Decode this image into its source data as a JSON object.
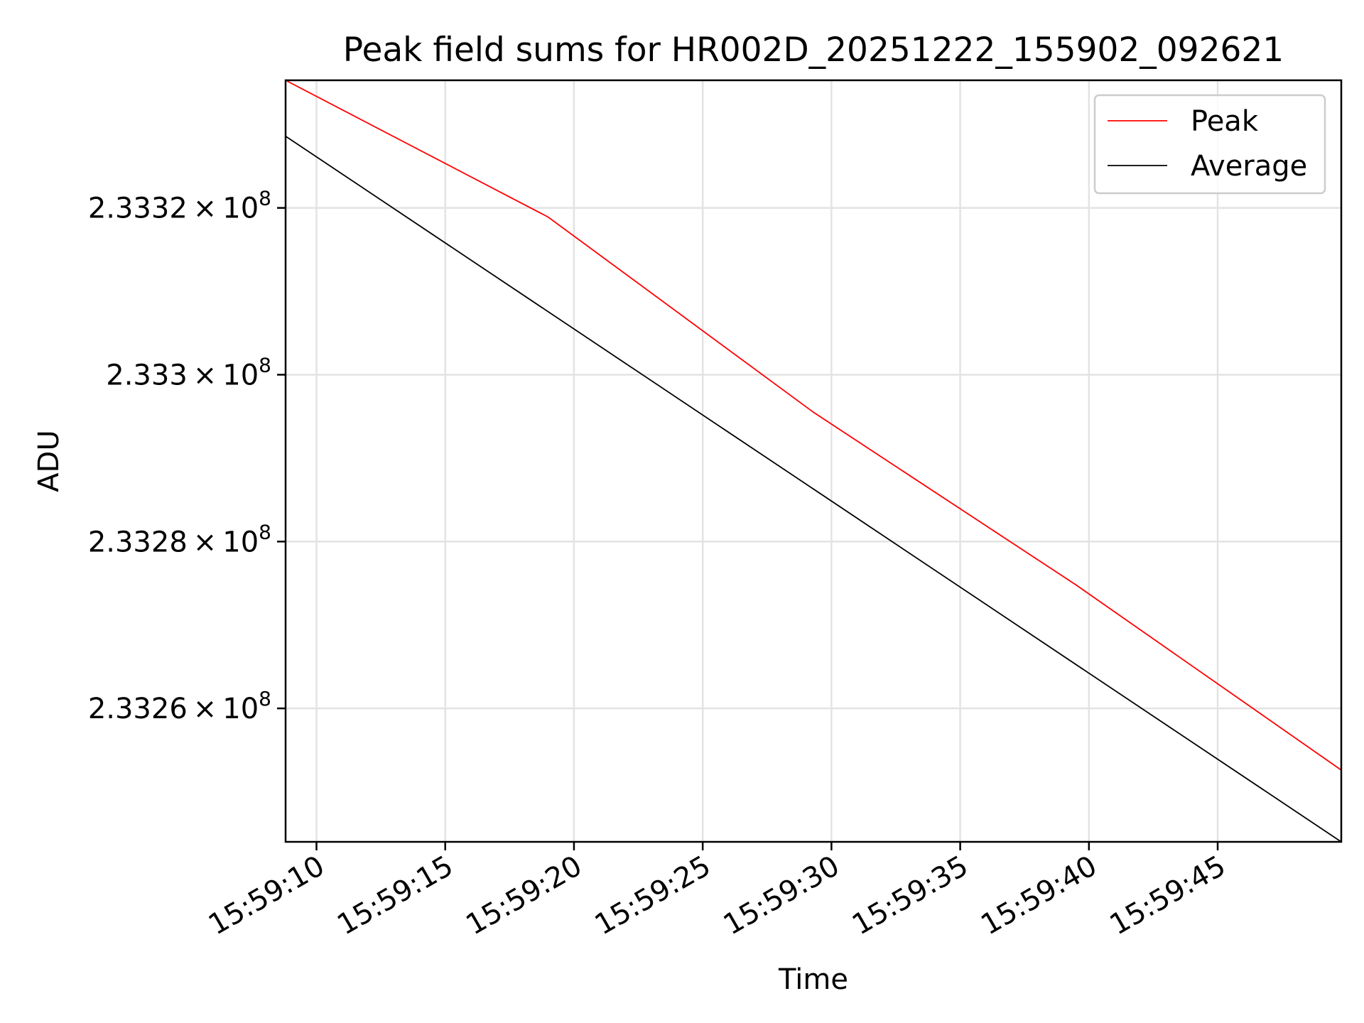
{
  "chart_data": {
    "type": "line",
    "title": "Peak field sums for HR002D_20251222_155902_092621",
    "xlabel": "Time",
    "ylabel": "ADU",
    "x_ticks": [
      "15:59:10",
      "15:59:15",
      "15:59:20",
      "15:59:25",
      "15:59:30",
      "15:59:35",
      "15:59:40",
      "15:59:45"
    ],
    "y_ticks": [
      {
        "value": 233260000,
        "mantissa": "2.3326",
        "exponent": "8"
      },
      {
        "value": 233280000,
        "mantissa": "2.3328",
        "exponent": "8"
      },
      {
        "value": 233300000,
        "mantissa": "2.333",
        "exponent": "8"
      },
      {
        "value": 233320000,
        "mantissa": "2.3332",
        "exponent": "8"
      }
    ],
    "xlim": [
      "15:59:08.8",
      "15:59:49.8"
    ],
    "ylim": [
      233244000,
      233335300
    ],
    "grid": true,
    "legend_position": "top-right",
    "series": [
      {
        "name": "Peak",
        "color": "#ff0000",
        "points": [
          {
            "x": "15:59:08.8",
            "y": 233335300
          },
          {
            "x": "15:59:19.0",
            "y": 233318900
          },
          {
            "x": "15:59:29.3",
            "y": 233295500
          },
          {
            "x": "15:59:39.5",
            "y": 233274800
          },
          {
            "x": "15:59:49.8",
            "y": 233252600
          }
        ]
      },
      {
        "name": "Average",
        "color": "#000000",
        "points": [
          {
            "x": "15:59:08.8",
            "y": 233328600
          },
          {
            "x": "15:59:49.8",
            "y": 233244000
          }
        ]
      }
    ]
  }
}
